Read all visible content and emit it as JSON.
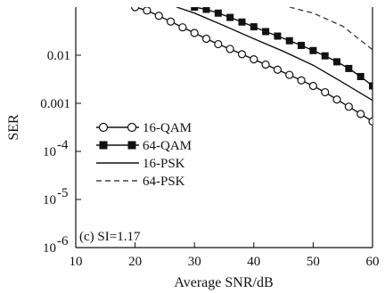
{
  "chart_data": {
    "type": "line",
    "xlabel": "Average SNR/dB",
    "ylabel": "SER",
    "xlim": [
      10,
      60
    ],
    "ylim": [
      1e-06,
      0.1
    ],
    "yscale": "log",
    "grid": false,
    "legend_position": "middle-left",
    "xticks": [
      {
        "value": 10,
        "label": "10"
      },
      {
        "value": 20,
        "label": "20"
      },
      {
        "value": 30,
        "label": "30"
      },
      {
        "value": 40,
        "label": "40"
      },
      {
        "value": 50,
        "label": "50"
      },
      {
        "value": 60,
        "label": "60"
      }
    ],
    "yticks": [
      {
        "value": 0.01,
        "label": "0.01",
        "exp": ""
      },
      {
        "value": 0.001,
        "label": "0.001",
        "exp": ""
      },
      {
        "value": 0.0001,
        "label": "10",
        "exp": "-4"
      },
      {
        "value": 1e-05,
        "label": "10",
        "exp": "-5"
      },
      {
        "value": 1e-06,
        "label": "10",
        "exp": "-6"
      }
    ],
    "annotation": "(c) SI=1.17",
    "series": [
      {
        "name": "16-QAM",
        "style": "solid",
        "marker": "open-circle",
        "x": [
          20,
          22,
          24,
          26,
          28,
          30,
          32,
          34,
          36,
          38,
          40,
          42,
          44,
          46,
          48,
          50,
          52,
          54,
          56,
          58,
          60
        ],
        "y": [
          0.1,
          0.085,
          0.066,
          0.05,
          0.038,
          0.029,
          0.022,
          0.017,
          0.0135,
          0.0105,
          0.0082,
          0.0064,
          0.005,
          0.0039,
          0.003,
          0.0023,
          0.0017,
          0.0012,
          0.00085,
          0.0006,
          0.00042
        ]
      },
      {
        "name": "64-QAM",
        "style": "solid",
        "marker": "filled-square",
        "x": [
          30,
          32,
          34,
          36,
          38,
          40,
          42,
          44,
          46,
          48,
          50,
          52,
          54,
          56,
          58,
          60
        ],
        "y": [
          0.1,
          0.09,
          0.075,
          0.061,
          0.049,
          0.039,
          0.031,
          0.025,
          0.02,
          0.016,
          0.0125,
          0.0097,
          0.0073,
          0.0053,
          0.0036,
          0.0023
        ]
      },
      {
        "name": "16-PSK",
        "style": "solid",
        "marker": "none",
        "x": [
          27,
          30,
          35,
          40,
          45,
          50,
          55,
          60
        ],
        "y": [
          0.1,
          0.075,
          0.041,
          0.022,
          0.012,
          0.0062,
          0.0027,
          0.00115
        ]
      },
      {
        "name": "64-PSK",
        "style": "dashed",
        "marker": "none",
        "x": [
          46,
          50,
          55,
          60
        ],
        "y": [
          0.1,
          0.075,
          0.04,
          0.013
        ]
      }
    ]
  }
}
